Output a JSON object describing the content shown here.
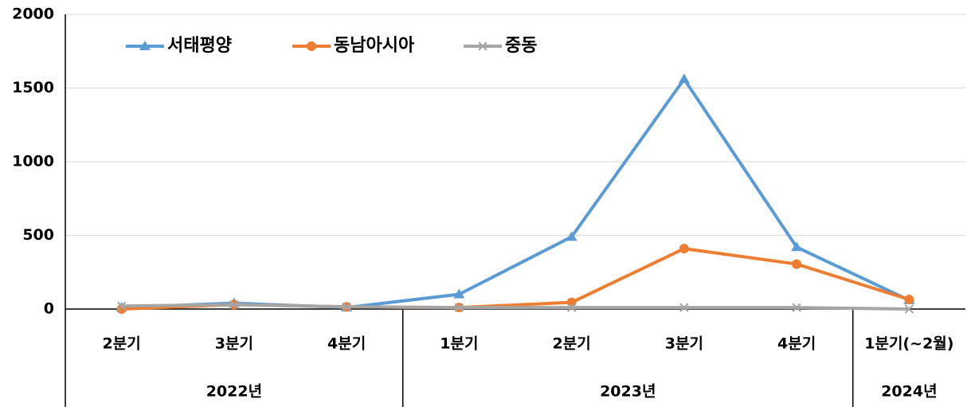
{
  "chart_data": {
    "type": "line",
    "categories": [
      "2분기",
      "3분기",
      "4분기",
      "1분기",
      "2분기",
      "3분기",
      "4분기",
      "1분기(~2월)"
    ],
    "category_groups": [
      {
        "label": "2022년",
        "span": 3
      },
      {
        "label": "2023년",
        "span": 4
      },
      {
        "label": "2024년",
        "span": 1
      }
    ],
    "series": [
      {
        "name": "서태평양",
        "color": "#5b9bd5",
        "marker": "triangle",
        "values": [
          10,
          40,
          10,
          100,
          490,
          1560,
          420,
          60
        ]
      },
      {
        "name": "동남아시아",
        "color": "#ed7d31",
        "marker": "circle",
        "values": [
          0,
          30,
          15,
          10,
          45,
          410,
          305,
          65
        ]
      },
      {
        "name": "중동",
        "color": "#a5a5a5",
        "marker": "x",
        "values": [
          20,
          30,
          15,
          10,
          10,
          10,
          10,
          0
        ]
      }
    ],
    "ylim": [
      0,
      2000
    ],
    "yticks": [
      0,
      500,
      1000,
      1500,
      2000
    ],
    "grid": true,
    "legend": "top-left"
  }
}
